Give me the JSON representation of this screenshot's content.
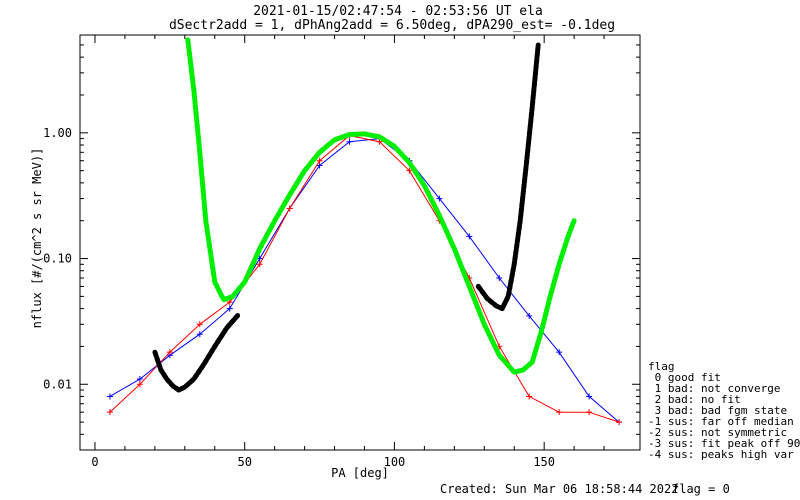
{
  "header": {
    "title_line1": "2021-01-15/02:47:54 - 02:53:56 UT ela",
    "title_line2": "dSectr2add = 1, dPhAng2add = 6.50deg, dPA290_est=  -0.1deg"
  },
  "footer": {
    "created": "Created: Sun Mar 06 18:58:44 2022",
    "flag": "flag = 0"
  },
  "legend": {
    "title": "flag",
    "items": [
      " 0 good fit",
      " 1 bad: not converge",
      " 2 bad: no fit",
      " 3 bad: bad fgm state",
      "-1 sus: far off median",
      "-2 sus: not symmetric",
      "-3 sus: fit peak off 90",
      "-4 sus: peaks high var"
    ]
  },
  "colors": {
    "series_a": "#ff0000",
    "series_b": "#0000ff",
    "fit_good": "#00ee00",
    "fit_other": "#000000"
  },
  "chart_data": {
    "type": "line",
    "xlabel": "PA [deg]",
    "ylabel": "nflux [#/(cm^2 s sr MeV)]",
    "xlim": [
      -5,
      182
    ],
    "ylim": [
      0.003,
      6
    ],
    "yscale": "log",
    "x_ticks": [
      0,
      50,
      100,
      150
    ],
    "x_tick_labels": [
      "0",
      "50",
      "100",
      "150"
    ],
    "y_ticks": [
      0.01,
      0.1,
      1.0
    ],
    "y_tick_labels": [
      "0.01",
      "0.10",
      "1.00"
    ],
    "series": [
      {
        "color": "#0000ff",
        "x": [
          5,
          15,
          25,
          35,
          45,
          55,
          65,
          75,
          85,
          95,
          105,
          115,
          125,
          135,
          145,
          155,
          165,
          175
        ],
        "y": [
          0.008,
          0.011,
          0.017,
          0.025,
          0.04,
          0.1,
          0.25,
          0.55,
          0.85,
          0.9,
          0.6,
          0.3,
          0.15,
          0.07,
          0.035,
          0.018,
          0.008,
          0.005
        ]
      },
      {
        "color": "#ff0000",
        "x": [
          5,
          15,
          25,
          35,
          45,
          55,
          65,
          75,
          85,
          95,
          105,
          115,
          125,
          135,
          145,
          155,
          165,
          175
        ],
        "y": [
          0.006,
          0.01,
          0.018,
          0.03,
          0.045,
          0.09,
          0.25,
          0.6,
          0.95,
          0.85,
          0.5,
          0.2,
          0.07,
          0.02,
          0.008,
          0.006,
          0.006,
          0.005
        ]
      },
      {
        "color": "#00ee00",
        "x": [
          31,
          33,
          35,
          37,
          40,
          43,
          46,
          50,
          55,
          60,
          65,
          70,
          75,
          80,
          85,
          90,
          95,
          100,
          105,
          110,
          115,
          120,
          125,
          130,
          135,
          140,
          143,
          146,
          149,
          152,
          155,
          158,
          160
        ],
        "y": [
          5.5,
          2.2,
          0.7,
          0.2,
          0.065,
          0.047,
          0.05,
          0.065,
          0.12,
          0.2,
          0.32,
          0.5,
          0.7,
          0.88,
          0.97,
          0.98,
          0.93,
          0.78,
          0.58,
          0.38,
          0.22,
          0.12,
          0.06,
          0.03,
          0.017,
          0.0125,
          0.013,
          0.015,
          0.026,
          0.05,
          0.09,
          0.15,
          0.2
        ]
      },
      {
        "color": "#000000",
        "x": [
          20,
          22,
          24,
          26,
          28,
          30,
          33,
          36,
          40,
          44,
          48
        ],
        "y": [
          0.018,
          0.013,
          0.011,
          0.0097,
          0.009,
          0.0095,
          0.011,
          0.014,
          0.02,
          0.028,
          0.036
        ]
      },
      {
        "color": "#000000",
        "x": [
          128,
          131,
          134,
          136,
          138,
          140,
          142,
          144,
          146,
          148
        ],
        "y": [
          0.06,
          0.048,
          0.042,
          0.04,
          0.05,
          0.09,
          0.2,
          0.55,
          1.6,
          5.0
        ]
      }
    ]
  }
}
